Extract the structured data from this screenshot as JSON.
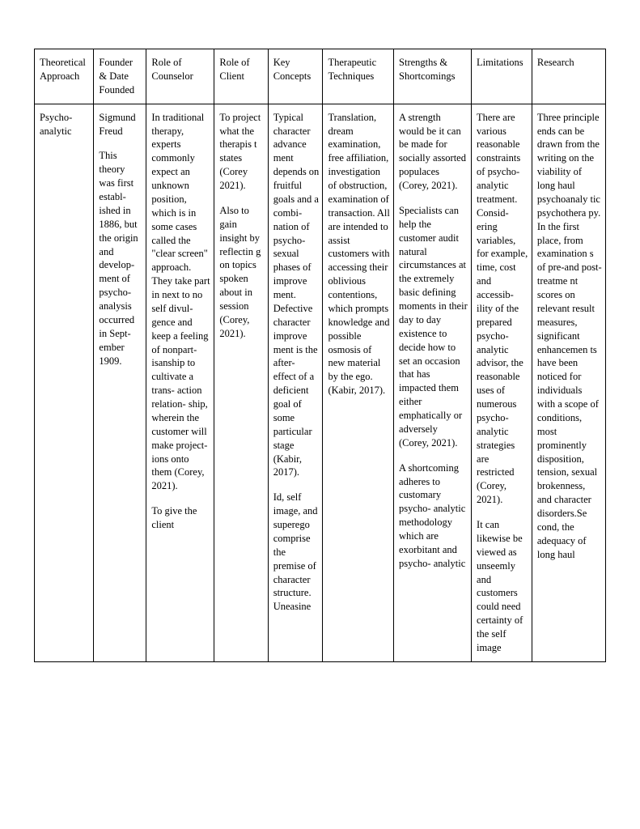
{
  "table": {
    "columns": [
      "Theoretical Approach",
      "Founder & Date Founded",
      "Role of Counselor",
      "Role of Client",
      "Key Concepts",
      "Therapeutic Techniques",
      "Strengths & Shortcomings",
      "Limitations",
      "Research"
    ],
    "row": {
      "approach": "Psycho-\nanalytic",
      "founder_p1": "Sigmund Freud",
      "founder_p2": "This theory was first establ-\nished in 1886, but the origin and develop-\nment of psycho-\nanalysis occurred in Sept-\nember 1909.",
      "counselor_p1": "In traditional therapy, experts commonly expect an unknown position, which is in some cases called the \"clear screen\" approach. They take part in next to no self divul-\ngence and keep a feeling of nonpart-\nisanship to cultivate a trans-\naction relation-\nship, wherein the customer will make project-\nions onto them (Corey, 2021).",
      "counselor_p2": "To give the client",
      "client_p1": "To project what the therapis\nt states (Corey 2021).",
      "client_p2": "Also to gain insight by reflectin\ng on topics spoken about in session (Corey, 2021).",
      "concepts_p1": "Typical character advance\nment depends on fruitful goals and a combi-\nnation of psycho-\nsexual phases of improve\nment. Defective character improve\nment is the after-\neffect of a deficient goal of some particular stage (Kabir, 2017).",
      "concepts_p2": "Id, self image, and superego comprise the premise of character structure. Uneasine",
      "techniques": "Translation, dream examination, free affiliation, investigation of obstruction, examination of transaction. All are intended to assist customers with accessing their oblivious contentions, which prompts knowledge and possible osmosis of new material by the ego.(Kabir, 2017).",
      "strengths_p1": "A strength would be it can be made for socially assorted populaces (Corey, 2021).",
      "strengths_p2": "Specialists can help the customer audit natural circumstances at the extremely basic defining moments in their day to day existence to decide how to set an occasion that has impacted them either emphatically or adversely (Corey, 2021).",
      "strengths_p3": "A shortcoming adheres to customary psycho-\nanalytic methodology which are exorbitant and psycho-\nanalytic",
      "limitations_p1": "There are various reasonable constraints of psycho-\nanalytic treatment. Consid-\nering variables, for example, time, cost and accessib-\nility of the prepared psycho-\nanalytic advisor, the reasonable uses of numerous psycho-\nanalytic strategies are restricted (Corey, 2021).",
      "limitations_p2": "It can likewise be viewed as unseemly and customers could need certainty of the self image",
      "research": "Three principle ends can be drawn from the writing on the viability of long haul psychoanaly\ntic psychothera\npy. In the first place, from examination\ns of pre-and post-treatme\nnt scores on relevant result measures, significant enhancemen\nts have been noticed for individuals with a scope of conditions, most prominently disposition, tension, sexual brokenness, and character disorders.Se\ncond, the adequacy of long haul"
    },
    "styling": {
      "border_color": "#000000",
      "background_color": "#ffffff",
      "text_color": "#000000",
      "font_family": "serif",
      "header_fontsize": 12.5,
      "cell_fontsize": 12.5,
      "line_height": 1.35,
      "column_widths_pct": [
        10.4,
        9.2,
        11.9,
        9.4,
        9.6,
        12.4,
        13.6,
        10.6,
        12.9
      ]
    }
  }
}
